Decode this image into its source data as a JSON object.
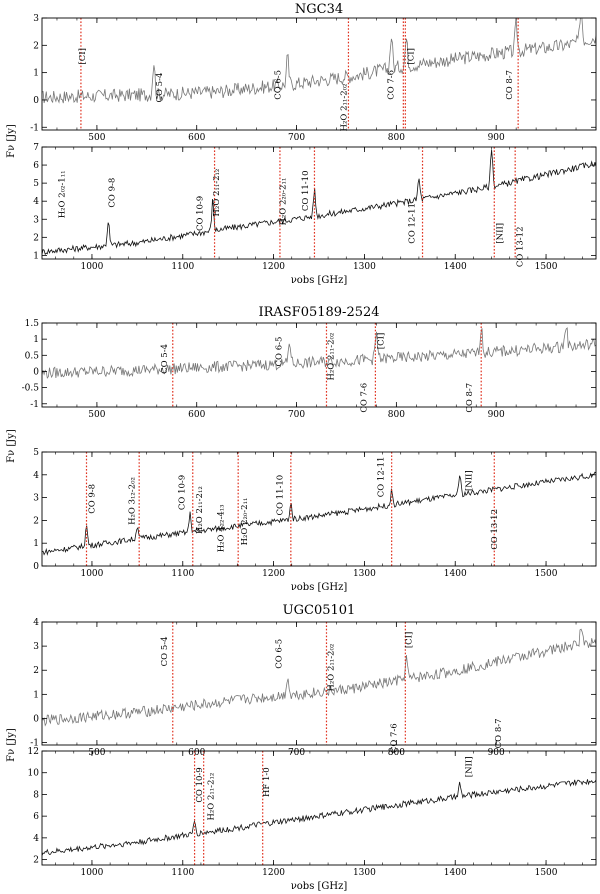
{
  "chart_data": [
    {
      "type": "line",
      "group": 0,
      "title": "NGC34",
      "ylabel": "",
      "xlabel": "",
      "xlim": [
        445,
        1000
      ],
      "ylim": [
        -1.1,
        3.0
      ],
      "xticks": [
        500,
        600,
        700,
        800,
        900
      ],
      "yticks": [
        -1,
        0,
        1,
        2,
        3
      ],
      "spectrum": {
        "name": "",
        "x": [
          445,
          560,
          620,
          700,
          760,
          800,
          860,
          900,
          970,
          1000
        ],
        "y": [
          0.1,
          0.2,
          0.3,
          0.6,
          0.9,
          1.2,
          1.5,
          1.7,
          2.0,
          2.3
        ]
      },
      "noise": 0.5,
      "peaks": [
        {
          "x": 557,
          "h": 1.2
        },
        {
          "x": 691,
          "h": 1.0
        },
        {
          "x": 795,
          "h": 1.2
        },
        {
          "x": 810,
          "h": 1.0
        },
        {
          "x": 920,
          "h": 1.0
        },
        {
          "x": 985,
          "h": 1.3
        }
      ],
      "lines": [
        {
          "x": 484
        },
        {
          "x": 752
        },
        {
          "x": 807
        },
        {
          "x": 809
        },
        {
          "x": 922
        }
      ],
      "labels": [
        {
          "text": "[CI]",
          "x": 488,
          "y": 1.9,
          "rot": -90
        },
        {
          "text": "CO 5-4",
          "x": 565,
          "y": 1.0,
          "rot": -90
        },
        {
          "text": "CO 6-5",
          "x": 684,
          "y": 1.1,
          "rot": -90
        },
        {
          "text": "H₂O 2₁₁-2₀₂",
          "x": 750,
          "y": 0.6,
          "rot": -90
        },
        {
          "text": "CO 7-6",
          "x": 797,
          "y": 1.1,
          "rot": -90
        },
        {
          "text": "[CI]",
          "x": 817,
          "y": 1.9,
          "rot": -90
        },
        {
          "text": "CO 8-7",
          "x": 916,
          "y": 1.1,
          "rot": -90
        }
      ]
    },
    {
      "type": "line",
      "group": 0,
      "title": "",
      "ylabel": "Fν [Jy]",
      "xlabel": "νobs [GHz]",
      "xlim": [
        945,
        1555
      ],
      "ylim": [
        0.8,
        7.0
      ],
      "xticks": [
        1000,
        1100,
        1200,
        1300,
        1400,
        1500
      ],
      "yticks": [
        1,
        2,
        3,
        4,
        5,
        6,
        7
      ],
      "spectrum": {
        "name": "",
        "x": [
          945,
          1050,
          1150,
          1250,
          1350,
          1450,
          1555
        ],
        "y": [
          1.2,
          1.7,
          2.5,
          3.2,
          4.0,
          4.9,
          6.1
        ]
      },
      "noise": 0.35,
      "peaks": [
        {
          "x": 1018,
          "h": 1.4
        },
        {
          "x": 1133,
          "h": 1.7
        },
        {
          "x": 1245,
          "h": 1.5
        },
        {
          "x": 1360,
          "h": 1.2
        },
        {
          "x": 1440,
          "h": 2.2
        }
      ],
      "lines": [
        {
          "x": 1135
        },
        {
          "x": 1207
        },
        {
          "x": 1245
        },
        {
          "x": 1364
        },
        {
          "x": 1443
        },
        {
          "x": 1466
        }
      ],
      "labels": [
        {
          "text": "H₂O 2₀₂-1₁₁",
          "x": 970,
          "y": 5.7,
          "rot": -90
        },
        {
          "text": "CO 9-8",
          "x": 1025,
          "y": 5.3,
          "rot": -90
        },
        {
          "text": "CO 10-9",
          "x": 1122,
          "y": 4.3,
          "rot": -90
        },
        {
          "text": "H₂O 2₁₁-2₁₂",
          "x": 1140,
          "y": 5.8,
          "rot": -90
        },
        {
          "text": "H₂O 2₂₀-2₁₁",
          "x": 1213,
          "y": 5.3,
          "rot": -90
        },
        {
          "text": "CO 11-10",
          "x": 1238,
          "y": 5.7,
          "rot": -90
        },
        {
          "text": "CO 12-11",
          "x": 1355,
          "y": 3.9,
          "rot": -90
        },
        {
          "text": "[NII]",
          "x": 1452,
          "y": 2.8,
          "rot": -90
        },
        {
          "text": "CO 13-12",
          "x": 1474,
          "y": 2.6,
          "rot": -90
        }
      ]
    },
    {
      "type": "line",
      "group": 1,
      "title": "IRASF05189-2524",
      "ylabel": "",
      "xlabel": "",
      "xlim": [
        445,
        1000
      ],
      "ylim": [
        -1.1,
        1.5
      ],
      "xticks": [
        500,
        600,
        700,
        800,
        900
      ],
      "yticks": [
        -1.0,
        -0.5,
        0.0,
        0.5,
        1.0,
        1.5
      ],
      "spectrum": {
        "name": "",
        "x": [
          445,
          550,
          650,
          750,
          850,
          950,
          1000
        ],
        "y": [
          -0.05,
          0.05,
          0.18,
          0.33,
          0.5,
          0.72,
          0.85
        ]
      },
      "noise": 0.35,
      "peaks": [
        {
          "x": 693,
          "h": 0.7
        },
        {
          "x": 780,
          "h": 0.8
        },
        {
          "x": 885,
          "h": 0.8
        },
        {
          "x": 970,
          "h": 0.7
        }
      ],
      "lines": [
        {
          "x": 576
        },
        {
          "x": 730
        },
        {
          "x": 779
        },
        {
          "x": 885
        }
      ],
      "labels": [
        {
          "text": "CO 5-4",
          "x": 570,
          "y": 0.85,
          "rot": -90
        },
        {
          "text": "CO 6-5",
          "x": 685,
          "y": 1.08,
          "rot": -90
        },
        {
          "text": "H₂O 2₁₁-2₀₂",
          "x": 737,
          "y": 1.2,
          "rot": -90
        },
        {
          "text": "[CI]",
          "x": 787,
          "y": 1.2,
          "rot": -90
        },
        {
          "text": "CO 7-6",
          "x": 770,
          "y": -0.35,
          "rot": -90
        },
        {
          "text": "CO 8-7",
          "x": 876,
          "y": -0.35,
          "rot": -90
        }
      ]
    },
    {
      "type": "line",
      "group": 1,
      "title": "",
      "ylabel": "Fν [Jy]",
      "xlabel": "νobs [GHz]",
      "xlim": [
        945,
        1555
      ],
      "ylim": [
        0.0,
        5.0
      ],
      "xticks": [
        1000,
        1100,
        1200,
        1300,
        1400,
        1500
      ],
      "yticks": [
        0,
        1,
        2,
        3,
        4,
        5
      ],
      "spectrum": {
        "name": "",
        "x": [
          945,
          1050,
          1150,
          1250,
          1350,
          1450,
          1555
        ],
        "y": [
          0.6,
          1.2,
          1.7,
          2.2,
          2.8,
          3.4,
          4.0
        ]
      },
      "noise": 0.25,
      "peaks": [
        {
          "x": 994,
          "h": 0.9
        },
        {
          "x": 1050,
          "h": 0.6
        },
        {
          "x": 1108,
          "h": 0.8
        },
        {
          "x": 1219,
          "h": 0.7
        },
        {
          "x": 1330,
          "h": 0.6
        },
        {
          "x": 1405,
          "h": 0.9
        }
      ],
      "lines": [
        {
          "x": 994
        },
        {
          "x": 1052
        },
        {
          "x": 1111
        },
        {
          "x": 1161
        },
        {
          "x": 1219
        },
        {
          "x": 1330
        },
        {
          "x": 1443
        }
      ],
      "labels": [
        {
          "text": "CO 9-8",
          "x": 1003,
          "y": 3.6,
          "rot": -90
        },
        {
          "text": "H₂O 3₁₂-2₀₂",
          "x": 1047,
          "y": 3.9,
          "rot": -90
        },
        {
          "text": "CO 10-9",
          "x": 1102,
          "y": 4.0,
          "rot": -90
        },
        {
          "text": "H₂O 2₁₁-2₁₂",
          "x": 1121,
          "y": 3.5,
          "rot": -90
        },
        {
          "text": "H₂O 4₂₂-4₁₃",
          "x": 1145,
          "y": 2.7,
          "rot": -90
        },
        {
          "text": "H₂O 2₂₀-2₁₁",
          "x": 1171,
          "y": 3.0,
          "rot": -90
        },
        {
          "text": "CO 11-10",
          "x": 1210,
          "y": 4.0,
          "rot": -90
        },
        {
          "text": "CO 12-11",
          "x": 1321,
          "y": 4.8,
          "rot": -90
        },
        {
          "text": "[NII]",
          "x": 1418,
          "y": 4.2,
          "rot": -90
        },
        {
          "text": "CO 13-12",
          "x": 1446,
          "y": 2.5,
          "rot": -90
        }
      ]
    },
    {
      "type": "line",
      "group": 2,
      "title": "UGC05101",
      "ylabel": "",
      "xlabel": "",
      "xlim": [
        445,
        1000
      ],
      "ylim": [
        -1.1,
        4.0
      ],
      "xticks": [
        500,
        600,
        700,
        800,
        900
      ],
      "yticks": [
        -1,
        0,
        1,
        2,
        3,
        4
      ],
      "spectrum": {
        "name": "",
        "x": [
          445,
          550,
          650,
          750,
          850,
          950,
          1000
        ],
        "y": [
          -0.1,
          0.3,
          0.8,
          1.2,
          1.9,
          2.8,
          3.2
        ]
      },
      "noise": 0.45,
      "peaks": [
        {
          "x": 691,
          "h": 0.8
        },
        {
          "x": 810,
          "h": 0.9
        },
        {
          "x": 985,
          "h": 0.8
        }
      ],
      "lines": [
        {
          "x": 576
        },
        {
          "x": 730
        },
        {
          "x": 809
        }
      ],
      "labels": [
        {
          "text": "CO 5-4",
          "x": 570,
          "y": 3.4,
          "rot": -90
        },
        {
          "text": "CO 6-5",
          "x": 685,
          "y": 3.3,
          "rot": -90
        },
        {
          "text": "H₂O 2₁₁-2₀₂",
          "x": 737,
          "y": 3.1,
          "rot": -90
        },
        {
          "text": "[CI]",
          "x": 815,
          "y": 3.6,
          "rot": -90
        },
        {
          "text": "CO 7-6",
          "x": 800,
          "y": -0.2,
          "rot": -90
        },
        {
          "text": "CO 8-7",
          "x": 905,
          "y": 0.0,
          "rot": -90
        }
      ]
    },
    {
      "type": "line",
      "group": 2,
      "title": "",
      "ylabel": "Fν [Jy]",
      "xlabel": "νobs [GHz]",
      "xlim": [
        945,
        1555
      ],
      "ylim": [
        1.5,
        12.0
      ],
      "xticks": [
        1000,
        1100,
        1200,
        1300,
        1400,
        1500
      ],
      "yticks": [
        2,
        4,
        6,
        8,
        10,
        12
      ],
      "spectrum": {
        "name": "",
        "x": [
          945,
          1050,
          1150,
          1250,
          1350,
          1450,
          1555
        ],
        "y": [
          2.6,
          3.6,
          4.8,
          6.0,
          7.2,
          8.3,
          9.3
        ]
      },
      "noise": 0.55,
      "peaks": [
        {
          "x": 1113,
          "h": 1.2
        },
        {
          "x": 1405,
          "h": 1.2
        }
      ],
      "lines": [
        {
          "x": 1113
        },
        {
          "x": 1123
        },
        {
          "x": 1188
        }
      ],
      "labels": [
        {
          "text": "CO 10-9",
          "x": 1121,
          "y": 10.5,
          "rot": -90
        },
        {
          "text": "H₂O 2₁₁-2₁₂",
          "x": 1134,
          "y": 10.0,
          "rot": -90
        },
        {
          "text": "HF 1-0",
          "x": 1195,
          "y": 10.5,
          "rot": -90
        },
        {
          "text": "[NII]",
          "x": 1418,
          "y": 11.5,
          "rot": -90
        }
      ]
    }
  ],
  "colors": {
    "upper_spectrum": "#777777",
    "lower_spectrum": "#111111",
    "line_marker": "#e0311f",
    "frame": "#000000"
  }
}
